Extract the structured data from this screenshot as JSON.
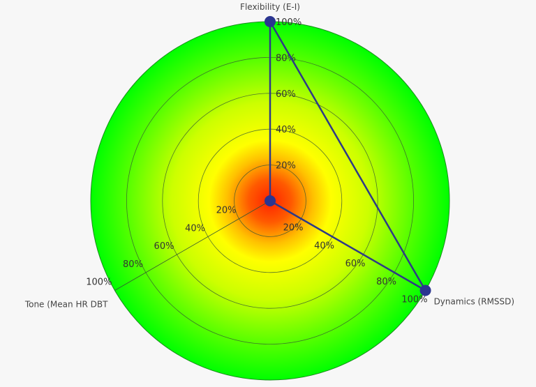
{
  "chart_data": {
    "type": "radar",
    "axes": [
      {
        "label": "Flexibility (E-I)",
        "angle_deg": 90,
        "value": 100
      },
      {
        "label": "Dynamics (RMSSD)",
        "angle_deg": -30,
        "value": 100
      },
      {
        "label": "Tone (Mean HR DBT",
        "angle_deg": 210,
        "value": 0
      }
    ],
    "rlim": [
      0,
      100
    ],
    "ticks": [
      20,
      40,
      60,
      80,
      100
    ],
    "tick_labels": [
      "20%",
      "40%",
      "60%",
      "80%",
      "100%"
    ],
    "grid": true,
    "background": "radial gradient red center to green edge",
    "colors": {
      "series": "#2e3a87",
      "marker": "#2b3590",
      "center": "#ff2a00",
      "mid": "#ffff00",
      "edge": "#00ff00",
      "grid": "#335533"
    }
  }
}
